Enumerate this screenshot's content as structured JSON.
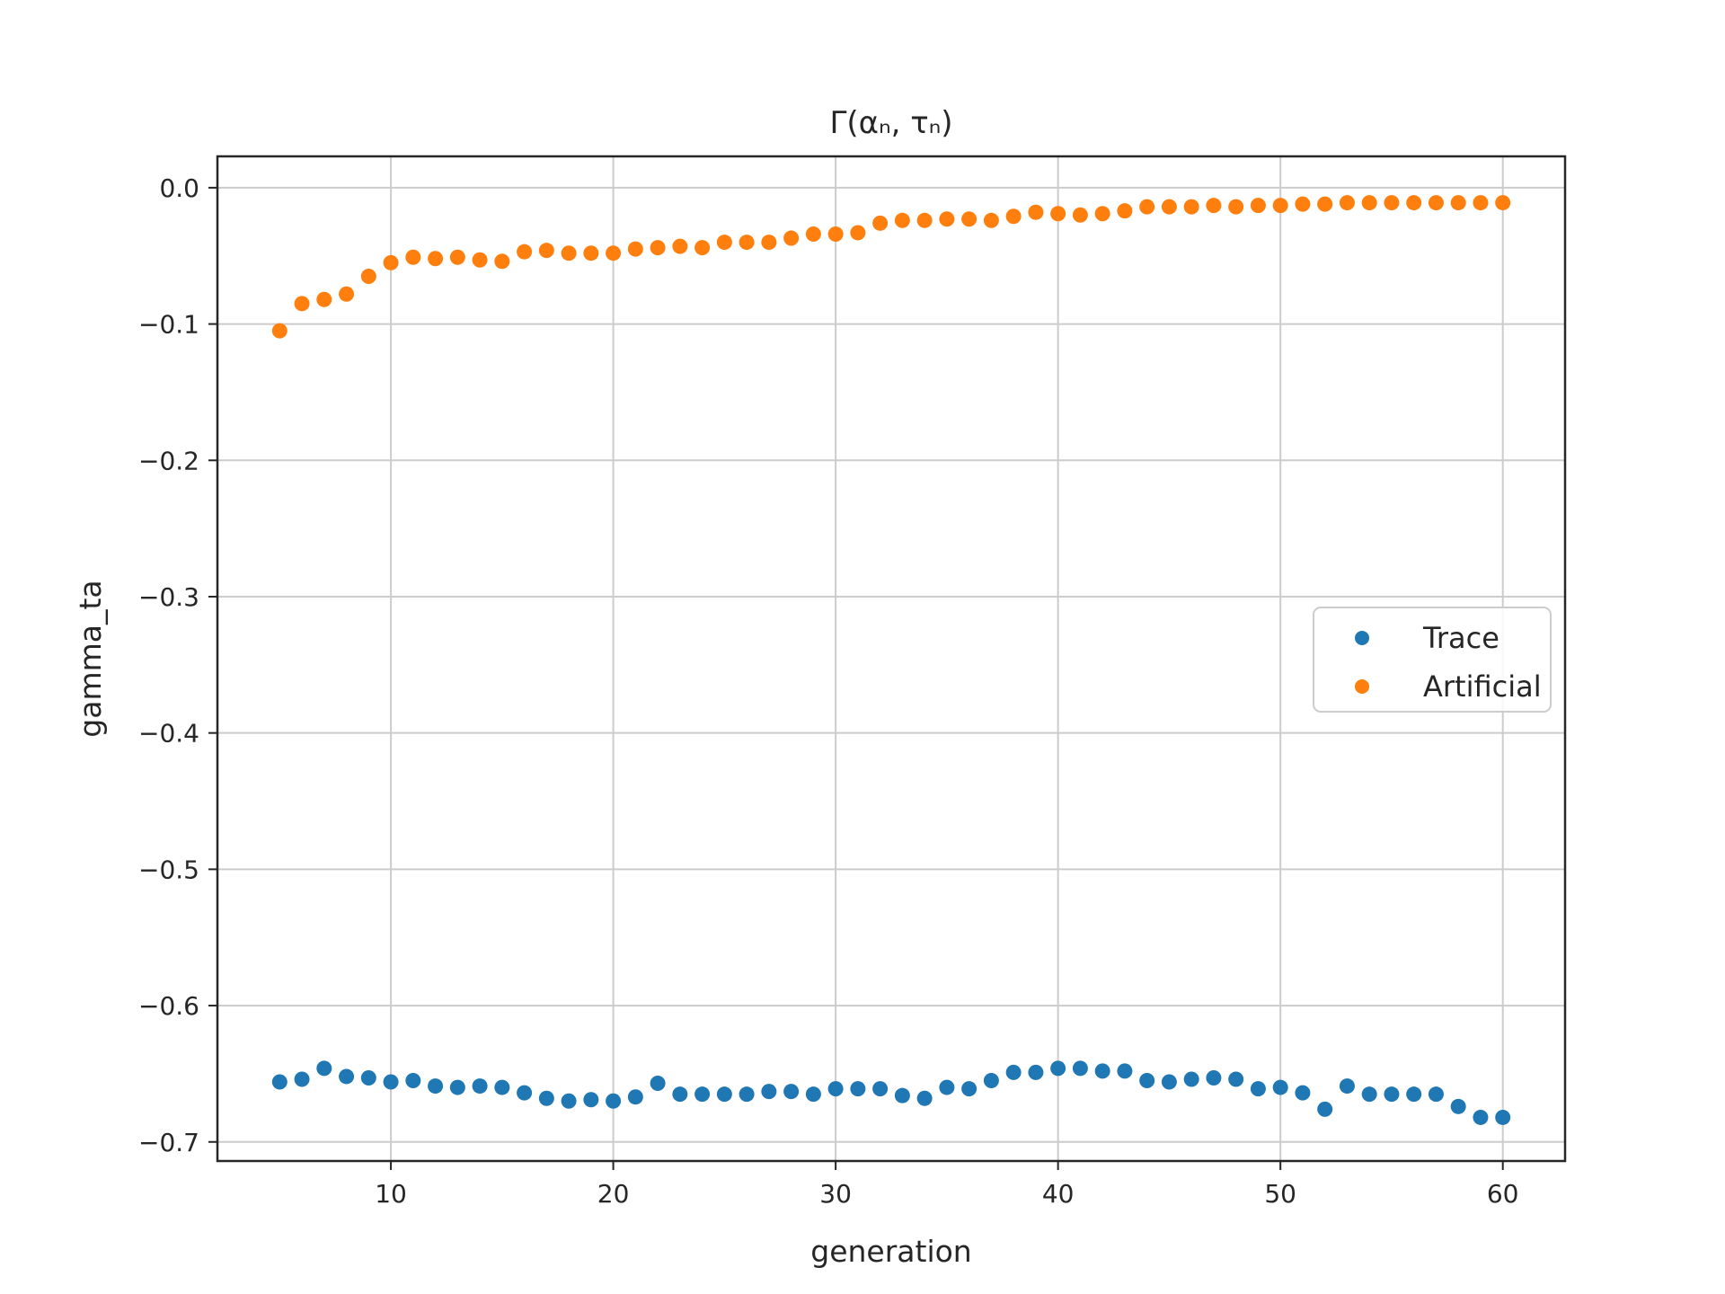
{
  "chart_data": {
    "type": "scatter",
    "title": "Γ(αₙ, τₙ)",
    "xlabel": "generation",
    "ylabel": "gamma_ta",
    "xlim": [
      2.2,
      62.8
    ],
    "ylim": [
      -0.714,
      0.023
    ],
    "xticks": [
      10,
      20,
      30,
      40,
      50,
      60
    ],
    "xtick_labels": [
      "10",
      "20",
      "30",
      "40",
      "50",
      "60"
    ],
    "yticks": [
      0.0,
      -0.1,
      -0.2,
      -0.3,
      -0.4,
      -0.5,
      -0.6,
      -0.7
    ],
    "ytick_labels": [
      "0.0",
      "−0.1",
      "−0.2",
      "−0.3",
      "−0.4",
      "−0.5",
      "−0.6",
      "−0.7"
    ],
    "grid": true,
    "legend_position": "center-right",
    "x": [
      5,
      6,
      7,
      8,
      9,
      10,
      11,
      12,
      13,
      14,
      15,
      16,
      17,
      18,
      19,
      20,
      21,
      22,
      23,
      24,
      25,
      26,
      27,
      28,
      29,
      30,
      31,
      32,
      33,
      34,
      35,
      36,
      37,
      38,
      39,
      40,
      41,
      42,
      43,
      44,
      45,
      46,
      47,
      48,
      49,
      50,
      51,
      52,
      53,
      54,
      55,
      56,
      57,
      58,
      59,
      60
    ],
    "series": [
      {
        "name": "Trace",
        "color": "#1f77b4",
        "values": [
          -0.656,
          -0.654,
          -0.646,
          -0.652,
          -0.653,
          -0.656,
          -0.655,
          -0.659,
          -0.66,
          -0.659,
          -0.66,
          -0.664,
          -0.668,
          -0.67,
          -0.669,
          -0.67,
          -0.667,
          -0.657,
          -0.665,
          -0.665,
          -0.665,
          -0.665,
          -0.663,
          -0.663,
          -0.665,
          -0.661,
          -0.661,
          -0.661,
          -0.666,
          -0.668,
          -0.66,
          -0.661,
          -0.655,
          -0.649,
          -0.649,
          -0.646,
          -0.646,
          -0.648,
          -0.648,
          -0.655,
          -0.656,
          -0.654,
          -0.653,
          -0.654,
          -0.661,
          -0.66,
          -0.664,
          -0.676,
          -0.659,
          -0.665,
          -0.665,
          -0.665,
          -0.665,
          -0.674,
          -0.682,
          -0.682
        ]
      },
      {
        "name": "Artificial",
        "color": "#ff7f0e",
        "values": [
          -0.105,
          -0.085,
          -0.082,
          -0.078,
          -0.065,
          -0.055,
          -0.051,
          -0.052,
          -0.051,
          -0.053,
          -0.054,
          -0.047,
          -0.046,
          -0.048,
          -0.048,
          -0.048,
          -0.045,
          -0.044,
          -0.043,
          -0.044,
          -0.04,
          -0.04,
          -0.04,
          -0.037,
          -0.034,
          -0.034,
          -0.033,
          -0.026,
          -0.024,
          -0.024,
          -0.023,
          -0.023,
          -0.024,
          -0.021,
          -0.018,
          -0.019,
          -0.02,
          -0.019,
          -0.017,
          -0.014,
          -0.014,
          -0.014,
          -0.013,
          -0.014,
          -0.013,
          -0.013,
          -0.012,
          -0.012,
          -0.011,
          -0.011,
          -0.011,
          -0.011,
          -0.011,
          -0.011,
          -0.011,
          -0.011
        ]
      }
    ]
  }
}
